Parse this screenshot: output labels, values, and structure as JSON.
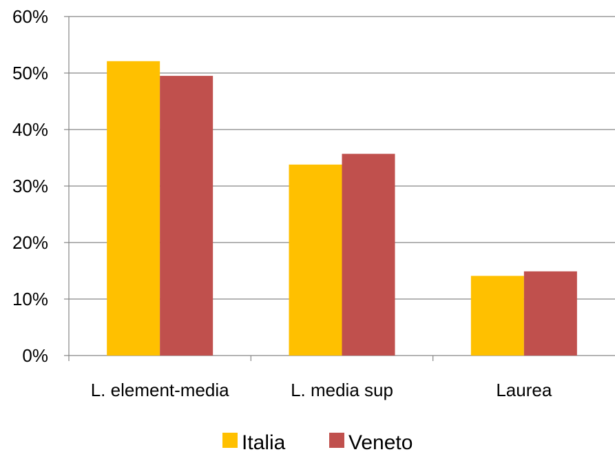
{
  "chart_data": {
    "type": "bar",
    "title": "",
    "xlabel": "",
    "ylabel": "",
    "categories": [
      "L. element-media",
      "L. media sup",
      "Laurea"
    ],
    "series": [
      {
        "name": "Italia",
        "values": [
          52.1,
          33.8,
          14.1
        ]
      },
      {
        "name": "Veneto",
        "values": [
          49.5,
          35.7,
          14.9
        ]
      }
    ],
    "ylim": [
      0,
      60
    ],
    "yticks": [
      0,
      10,
      20,
      30,
      40,
      50,
      60
    ],
    "ytick_labels": [
      "0%",
      "10%",
      "20%",
      "30%",
      "40%",
      "50%",
      "60%"
    ],
    "grid": "horizontal",
    "legend_position": "bottom",
    "colors": {
      "Italia": "#FFC000",
      "Veneto": "#C0504D",
      "gridline": "#868686",
      "axis": "#868686"
    }
  }
}
